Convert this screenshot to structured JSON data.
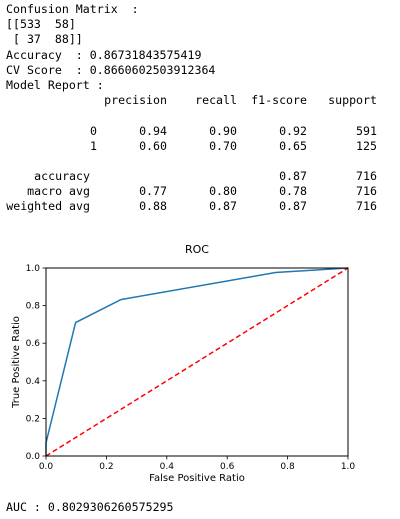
{
  "output": {
    "confusion_title": "Confusion Matrix  :",
    "matrix_line_1": "[[533  58]",
    "matrix_line_2": " [ 37  88]]",
    "accuracy_line": "Accuracy  : 0.86731843575419",
    "cv_score_line": "CV Score  : 0.8660602503912364",
    "report_title": "Model Report :",
    "report": {
      "headers": [
        "precision",
        "recall",
        "f1-score",
        "support"
      ],
      "class_rows": [
        {
          "label": "0",
          "precision": "0.94",
          "recall": "0.90",
          "f1": "0.92",
          "support": "591"
        },
        {
          "label": "1",
          "precision": "0.60",
          "recall": "0.70",
          "f1": "0.65",
          "support": "125"
        }
      ],
      "summary_rows": [
        {
          "label": "accuracy",
          "precision": "",
          "recall": "",
          "f1": "0.87",
          "support": "716"
        },
        {
          "label": "macro avg",
          "precision": "0.77",
          "recall": "0.80",
          "f1": "0.78",
          "support": "716"
        },
        {
          "label": "weighted avg",
          "precision": "0.88",
          "recall": "0.87",
          "f1": "0.87",
          "support": "716"
        }
      ]
    },
    "auc_line": "AUC : 0.8029306260575295"
  },
  "chart_data": {
    "type": "line",
    "title": "ROC",
    "xlabel": "False Positive Ratio",
    "ylabel": "True Positive Ratio",
    "xlim": [
      0.0,
      1.0
    ],
    "ylim": [
      0.0,
      1.0
    ],
    "xticks": [
      "0.0",
      "0.2",
      "0.4",
      "0.6",
      "0.8",
      "1.0"
    ],
    "yticks": [
      "0.0",
      "0.2",
      "0.4",
      "0.6",
      "0.8",
      "1.0"
    ],
    "grid": false,
    "legend": "none",
    "series": [
      {
        "style": "solid",
        "color": "#1f77b4",
        "x": [
          0.0,
          0.0,
          0.098,
          0.248,
          0.76,
          1.0
        ],
        "y": [
          0.0,
          0.07,
          0.71,
          0.832,
          0.976,
          1.0
        ]
      },
      {
        "style": "dashed",
        "color": "#ff0000",
        "x": [
          0.0,
          1.0
        ],
        "y": [
          0.0,
          1.0
        ]
      }
    ]
  }
}
